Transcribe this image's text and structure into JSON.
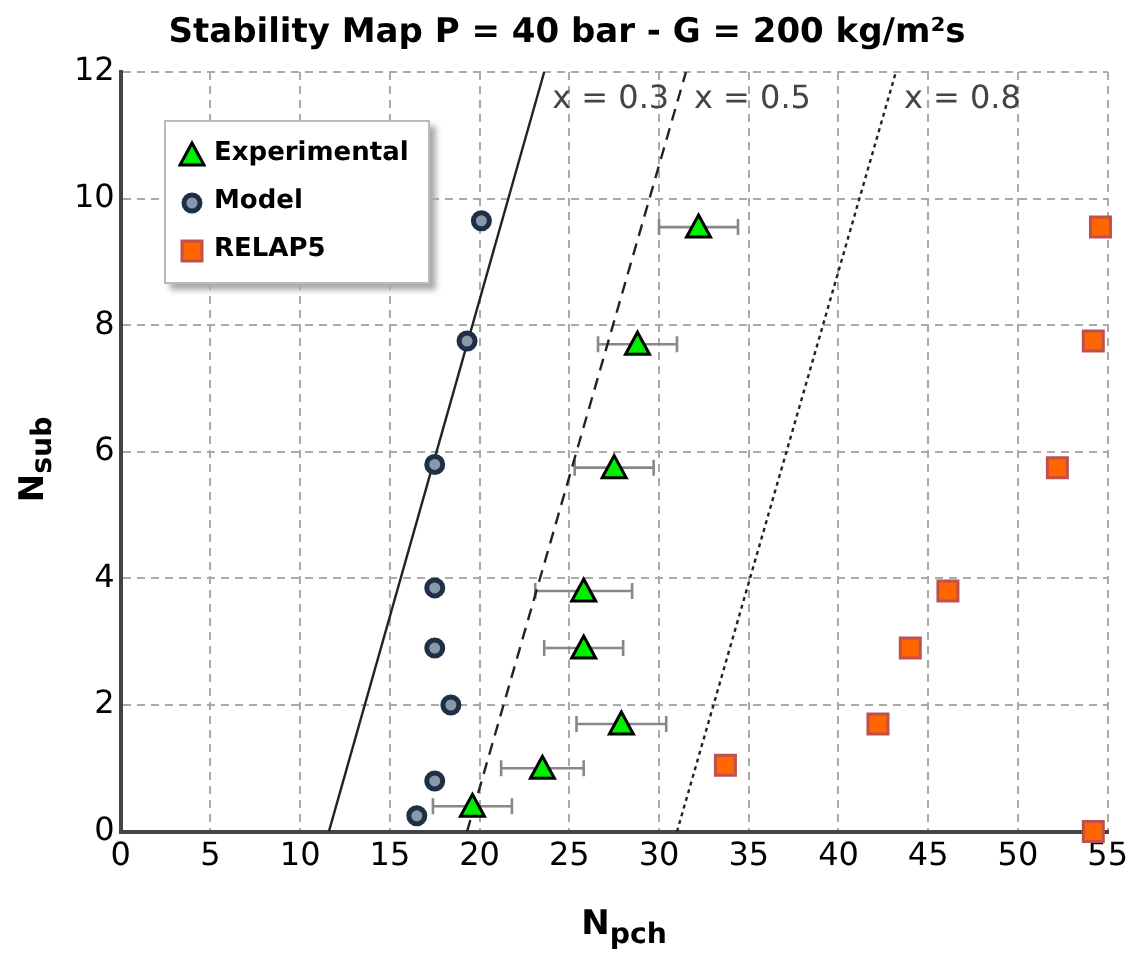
{
  "chart_data": {
    "type": "scatter",
    "title": "Stability Map P = 40 bar - G = 200 kg/m²s",
    "xlabel": "N$_{pch}$",
    "ylabel": "N$_{sub}$",
    "xlim": [
      0,
      55
    ],
    "xticks": [
      0,
      5,
      10,
      15,
      20,
      25,
      30,
      35,
      40,
      45,
      50,
      55
    ],
    "ylim": [
      0,
      12
    ],
    "yticks": [
      0,
      2,
      4,
      6,
      8,
      10,
      12
    ],
    "grid": true,
    "legend": "top left",
    "annotations": [
      "x = 0.3",
      "x = 0.5",
      "x = 0.8"
    ],
    "series": [
      {
        "name": "Experimental",
        "marker": "triangle",
        "color": "#00ee00",
        "x": [
          19.6,
          23.5,
          27.9,
          25.8,
          25.8,
          27.5,
          28.8,
          32.2
        ],
        "values": [
          0.4,
          1.0,
          1.7,
          2.9,
          3.8,
          5.75,
          7.7,
          9.55
        ],
        "xerrors": [
          2.2,
          2.3,
          2.5,
          2.2,
          2.7,
          2.2,
          2.2,
          2.2
        ]
      },
      {
        "name": "Model",
        "marker": "circle",
        "color": "#1f2f45",
        "x": [
          16.5,
          17.5,
          18.4,
          17.5,
          17.5,
          17.5,
          19.3,
          20.1
        ],
        "values": [
          0.25,
          0.8,
          2.0,
          2.9,
          3.85,
          5.8,
          7.75,
          9.65
        ]
      },
      {
        "name": "RELAP5",
        "marker": "square",
        "color": "#ff6600",
        "x": [
          33.7,
          42.2,
          44.0,
          46.1,
          52.2,
          54.2,
          54.6,
          54.2
        ],
        "values": [
          1.05,
          1.7,
          2.9,
          3.8,
          5.75,
          7.75,
          9.55,
          0
        ]
      },
      {
        "type": "line",
        "color": "#222222",
        "line_style": "solid",
        "x": [
          11.6,
          23.6
        ],
        "values": [
          0,
          12
        ]
      },
      {
        "type": "line",
        "color": "#222222",
        "line_style": "dashed",
        "x": [
          19.3,
          31.5
        ],
        "values": [
          0,
          12
        ]
      },
      {
        "type": "line",
        "color": "#222222",
        "line_style": "dotted",
        "x": [
          31.0,
          43.2
        ],
        "values": [
          0,
          12
        ]
      }
    ]
  }
}
